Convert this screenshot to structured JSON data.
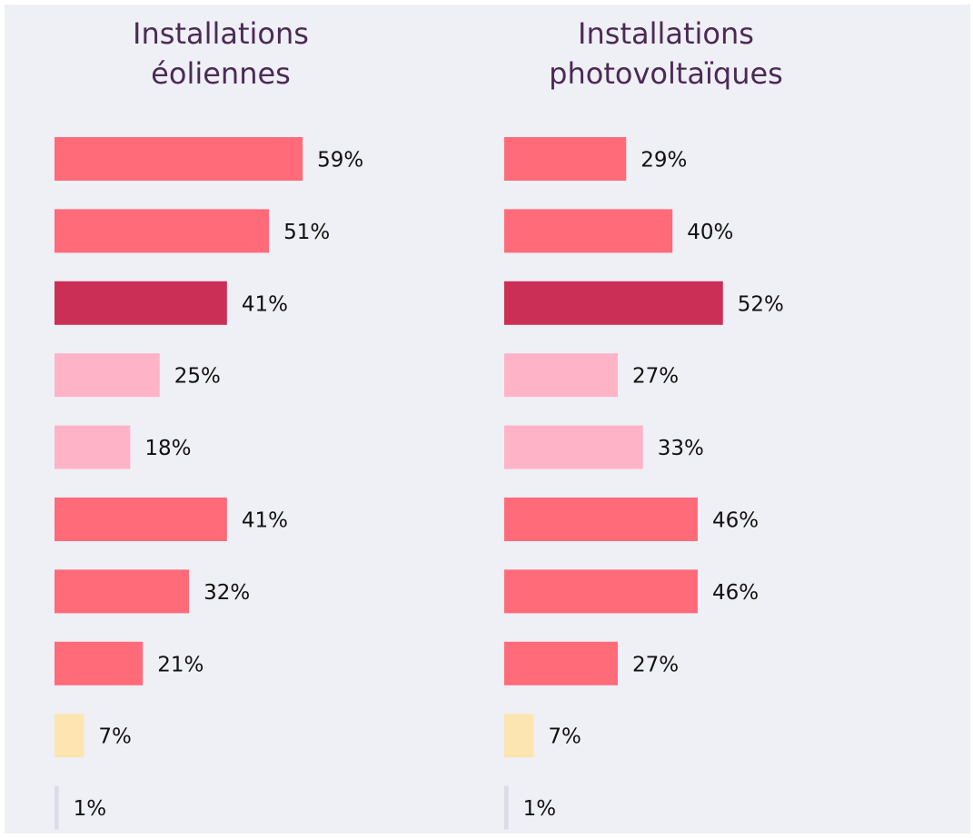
{
  "chart_data": [
    {
      "type": "bar",
      "orientation": "horizontal",
      "title": [
        "Installations",
        "éoliennes"
      ],
      "categories": [
        null,
        null,
        null,
        null,
        null,
        null,
        null,
        null,
        null,
        null
      ],
      "values": [
        59,
        51,
        41,
        25,
        18,
        41,
        32,
        21,
        7,
        1
      ],
      "value_labels": [
        "59%",
        "51%",
        "41%",
        "25%",
        "18%",
        "41%",
        "32%",
        "21%",
        "7%",
        "1%"
      ],
      "colors": [
        "#ff6b78",
        "#ff6b78",
        "#cc2f56",
        "#ffb3c6",
        "#ffb3c6",
        "#ff6b78",
        "#ff6b78",
        "#ff6b78",
        "#fce5b0",
        "#dcdce8"
      ]
    },
    {
      "type": "bar",
      "orientation": "horizontal",
      "title": [
        "Installations",
        "photovoltaïques"
      ],
      "categories": [
        null,
        null,
        null,
        null,
        null,
        null,
        null,
        null,
        null,
        null
      ],
      "values": [
        29,
        40,
        52,
        27,
        33,
        46,
        46,
        27,
        7,
        1
      ],
      "value_labels": [
        "29%",
        "40%",
        "52%",
        "27%",
        "33%",
        "46%",
        "46%",
        "27%",
        "7%",
        "1%"
      ],
      "colors": [
        "#ff6b78",
        "#ff6b78",
        "#cc2f56",
        "#ffb3c6",
        "#ffb3c6",
        "#ff6b78",
        "#ff6b78",
        "#ff6b78",
        "#fce5b0",
        "#dcdce8"
      ]
    }
  ]
}
